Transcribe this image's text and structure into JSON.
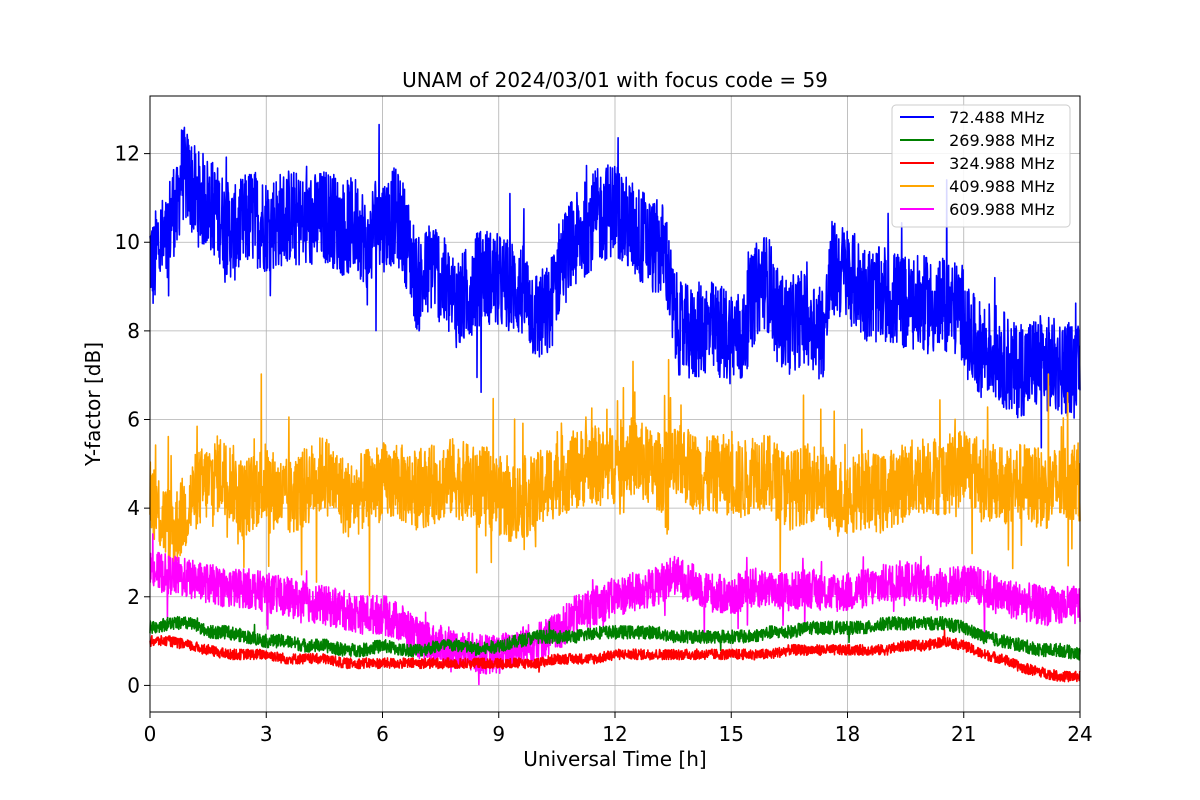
{
  "chart_data": {
    "type": "line",
    "title": "UNAM of 2024/03/01 with focus code = 59",
    "xlabel": "Universal Time [h]",
    "ylabel": "Y-factor [dB]",
    "xlim": [
      0,
      24
    ],
    "ylim": [
      -0.6,
      13.3
    ],
    "xticks": [
      0,
      3,
      6,
      9,
      12,
      15,
      18,
      21,
      24
    ],
    "yticks": [
      0,
      2,
      4,
      6,
      8,
      10,
      12
    ],
    "grid": true,
    "legend_position": "top-right",
    "series": [
      {
        "name": " 72.488 MHz",
        "color": "#0000ff",
        "points": [
          [
            0,
            9.8
          ],
          [
            0.1,
            9.4
          ],
          [
            0.2,
            10.0
          ],
          [
            0.4,
            9.9
          ],
          [
            0.5,
            10.4
          ],
          [
            0.6,
            10.8
          ],
          [
            0.7,
            10.6
          ],
          [
            0.8,
            11.6
          ],
          [
            1.0,
            11.4
          ],
          [
            1.2,
            11.0
          ],
          [
            1.5,
            10.9
          ],
          [
            1.8,
            10.6
          ],
          [
            2.0,
            10.3
          ],
          [
            2.2,
            10.2
          ],
          [
            2.4,
            10.4
          ],
          [
            2.6,
            10.6
          ],
          [
            3.0,
            10.4
          ],
          [
            3.3,
            10.5
          ],
          [
            3.6,
            10.6
          ],
          [
            4.0,
            10.4
          ],
          [
            4.3,
            10.5
          ],
          [
            4.6,
            10.6
          ],
          [
            5.0,
            10.3
          ],
          [
            5.3,
            10.4
          ],
          [
            5.5,
            10.2
          ],
          [
            5.6,
            9.6
          ],
          [
            5.8,
            10.5
          ],
          [
            6.0,
            10.4
          ],
          [
            6.3,
            10.6
          ],
          [
            6.5,
            10.4
          ],
          [
            6.7,
            9.8
          ],
          [
            6.9,
            9.0
          ],
          [
            7.1,
            9.2
          ],
          [
            7.3,
            9.6
          ],
          [
            7.6,
            9.0
          ],
          [
            8.0,
            8.6
          ],
          [
            8.3,
            9.0
          ],
          [
            8.6,
            9.3
          ],
          [
            9.0,
            9.1
          ],
          [
            9.3,
            9.0
          ],
          [
            9.6,
            8.9
          ],
          [
            10.0,
            8.3
          ],
          [
            10.3,
            8.4
          ],
          [
            10.6,
            9.6
          ],
          [
            11.0,
            10.0
          ],
          [
            11.3,
            10.4
          ],
          [
            11.6,
            10.6
          ],
          [
            12.0,
            10.8
          ],
          [
            12.3,
            10.4
          ],
          [
            12.6,
            10.2
          ],
          [
            13.0,
            9.9
          ],
          [
            13.3,
            9.8
          ],
          [
            13.5,
            8.4
          ],
          [
            13.7,
            8.0
          ],
          [
            14.0,
            7.9
          ],
          [
            14.3,
            8.1
          ],
          [
            14.6,
            8.0
          ],
          [
            15.0,
            7.9
          ],
          [
            15.3,
            7.8
          ],
          [
            15.5,
            8.6
          ],
          [
            15.8,
            9.2
          ],
          [
            16.0,
            9.0
          ],
          [
            16.2,
            8.3
          ],
          [
            16.5,
            8.1
          ],
          [
            16.8,
            8.3
          ],
          [
            17.1,
            8.2
          ],
          [
            17.4,
            8.0
          ],
          [
            17.6,
            9.4
          ],
          [
            18.0,
            9.3
          ],
          [
            18.3,
            9.0
          ],
          [
            18.6,
            8.8
          ],
          [
            19.0,
            8.8
          ],
          [
            19.3,
            8.7
          ],
          [
            19.6,
            8.6
          ],
          [
            20.0,
            8.6
          ],
          [
            20.3,
            8.5
          ],
          [
            20.6,
            8.6
          ],
          [
            21.0,
            8.4
          ],
          [
            21.1,
            7.9
          ],
          [
            21.4,
            7.6
          ],
          [
            21.7,
            7.6
          ],
          [
            22.0,
            7.4
          ],
          [
            22.3,
            7.1
          ],
          [
            22.6,
            7.2
          ],
          [
            23.0,
            7.3
          ],
          [
            23.3,
            7.2
          ],
          [
            23.6,
            7.2
          ],
          [
            24.0,
            7.0
          ]
        ]
      },
      {
        "name": " 269.988 MHz",
        "color": "#008000",
        "points": [
          [
            0,
            1.3
          ],
          [
            0.5,
            1.4
          ],
          [
            1.0,
            1.4
          ],
          [
            1.5,
            1.2
          ],
          [
            2.0,
            1.2
          ],
          [
            2.5,
            1.1
          ],
          [
            3.0,
            1.0
          ],
          [
            3.5,
            1.0
          ],
          [
            4.0,
            0.9
          ],
          [
            4.5,
            0.9
          ],
          [
            5.0,
            0.8
          ],
          [
            5.5,
            0.8
          ],
          [
            6.0,
            0.9
          ],
          [
            6.5,
            0.8
          ],
          [
            7.0,
            0.8
          ],
          [
            7.5,
            0.9
          ],
          [
            8.0,
            0.9
          ],
          [
            8.5,
            0.8
          ],
          [
            9.0,
            0.9
          ],
          [
            9.5,
            1.0
          ],
          [
            10.0,
            1.1
          ],
          [
            10.5,
            1.1
          ],
          [
            11.0,
            1.1
          ],
          [
            11.5,
            1.2
          ],
          [
            12.0,
            1.2
          ],
          [
            12.5,
            1.2
          ],
          [
            13.0,
            1.2
          ],
          [
            13.5,
            1.1
          ],
          [
            14.0,
            1.1
          ],
          [
            14.5,
            1.1
          ],
          [
            15.0,
            1.1
          ],
          [
            15.5,
            1.1
          ],
          [
            16.0,
            1.2
          ],
          [
            16.5,
            1.2
          ],
          [
            17.0,
            1.3
          ],
          [
            17.5,
            1.3
          ],
          [
            18.0,
            1.3
          ],
          [
            18.5,
            1.3
          ],
          [
            19.0,
            1.4
          ],
          [
            19.5,
            1.4
          ],
          [
            20.0,
            1.4
          ],
          [
            20.5,
            1.4
          ],
          [
            21.0,
            1.3
          ],
          [
            21.5,
            1.1
          ],
          [
            22.0,
            1.0
          ],
          [
            22.5,
            0.9
          ],
          [
            23.0,
            0.8
          ],
          [
            23.5,
            0.8
          ],
          [
            24.0,
            0.7
          ]
        ]
      },
      {
        "name": " 324.988 MHz",
        "color": "#ff0000",
        "points": [
          [
            0,
            1.0
          ],
          [
            0.5,
            1.0
          ],
          [
            1.0,
            0.9
          ],
          [
            1.5,
            0.8
          ],
          [
            2.0,
            0.7
          ],
          [
            2.5,
            0.7
          ],
          [
            3.0,
            0.7
          ],
          [
            3.5,
            0.6
          ],
          [
            4.0,
            0.6
          ],
          [
            4.5,
            0.6
          ],
          [
            5.0,
            0.5
          ],
          [
            5.5,
            0.5
          ],
          [
            6.0,
            0.5
          ],
          [
            6.5,
            0.5
          ],
          [
            7.0,
            0.5
          ],
          [
            7.5,
            0.5
          ],
          [
            8.0,
            0.5
          ],
          [
            8.5,
            0.5
          ],
          [
            9.0,
            0.5
          ],
          [
            9.5,
            0.5
          ],
          [
            10.0,
            0.5
          ],
          [
            10.5,
            0.6
          ],
          [
            11.0,
            0.6
          ],
          [
            11.5,
            0.6
          ],
          [
            12.0,
            0.7
          ],
          [
            12.5,
            0.7
          ],
          [
            13.0,
            0.7
          ],
          [
            13.5,
            0.7
          ],
          [
            14.0,
            0.7
          ],
          [
            14.5,
            0.7
          ],
          [
            15.0,
            0.7
          ],
          [
            15.5,
            0.7
          ],
          [
            16.0,
            0.7
          ],
          [
            16.5,
            0.8
          ],
          [
            17.0,
            0.8
          ],
          [
            17.5,
            0.8
          ],
          [
            18.0,
            0.8
          ],
          [
            18.5,
            0.8
          ],
          [
            19.0,
            0.8
          ],
          [
            19.5,
            0.9
          ],
          [
            20.0,
            0.9
          ],
          [
            20.5,
            1.0
          ],
          [
            21.0,
            0.9
          ],
          [
            21.5,
            0.7
          ],
          [
            22.0,
            0.6
          ],
          [
            22.5,
            0.4
          ],
          [
            23.0,
            0.3
          ],
          [
            23.5,
            0.2
          ],
          [
            24.0,
            0.2
          ]
        ]
      },
      {
        "name": " 409.988 MHz",
        "color": "#ffa500",
        "points": [
          [
            0,
            4.4
          ],
          [
            0.3,
            3.8
          ],
          [
            0.6,
            3.5
          ],
          [
            0.9,
            3.9
          ],
          [
            1.2,
            4.4
          ],
          [
            1.5,
            4.6
          ],
          [
            1.8,
            4.8
          ],
          [
            2.1,
            4.6
          ],
          [
            2.4,
            4.2
          ],
          [
            2.7,
            4.4
          ],
          [
            3.0,
            4.6
          ],
          [
            3.3,
            4.3
          ],
          [
            3.6,
            4.2
          ],
          [
            3.9,
            4.4
          ],
          [
            4.2,
            4.6
          ],
          [
            4.5,
            4.8
          ],
          [
            4.8,
            4.5
          ],
          [
            5.1,
            4.2
          ],
          [
            5.4,
            4.3
          ],
          [
            5.7,
            4.5
          ],
          [
            6.0,
            4.6
          ],
          [
            6.3,
            4.6
          ],
          [
            6.6,
            4.5
          ],
          [
            6.9,
            4.4
          ],
          [
            7.2,
            4.5
          ],
          [
            7.5,
            4.6
          ],
          [
            7.8,
            4.7
          ],
          [
            8.1,
            4.6
          ],
          [
            8.4,
            4.5
          ],
          [
            8.7,
            4.5
          ],
          [
            9.0,
            4.3
          ],
          [
            9.3,
            4.1
          ],
          [
            9.6,
            4.2
          ],
          [
            9.9,
            4.3
          ],
          [
            10.2,
            4.5
          ],
          [
            10.5,
            4.7
          ],
          [
            10.8,
            4.8
          ],
          [
            11.1,
            4.9
          ],
          [
            11.4,
            5.0
          ],
          [
            11.7,
            4.9
          ],
          [
            12.0,
            5.0
          ],
          [
            12.3,
            5.2
          ],
          [
            12.6,
            5.1
          ],
          [
            12.9,
            4.9
          ],
          [
            13.2,
            4.8
          ],
          [
            13.5,
            4.9
          ],
          [
            13.8,
            5.0
          ],
          [
            14.1,
            4.8
          ],
          [
            14.4,
            4.7
          ],
          [
            14.7,
            4.8
          ],
          [
            15.0,
            4.7
          ],
          [
            15.3,
            4.6
          ],
          [
            15.6,
            4.9
          ],
          [
            15.9,
            4.8
          ],
          [
            16.2,
            4.6
          ],
          [
            16.5,
            4.4
          ],
          [
            16.8,
            4.5
          ],
          [
            17.1,
            4.6
          ],
          [
            17.4,
            4.5
          ],
          [
            17.7,
            4.2
          ],
          [
            18.0,
            4.3
          ],
          [
            18.3,
            4.4
          ],
          [
            18.6,
            4.4
          ],
          [
            18.9,
            4.3
          ],
          [
            19.2,
            4.5
          ],
          [
            19.5,
            4.6
          ],
          [
            19.8,
            4.7
          ],
          [
            20.1,
            4.8
          ],
          [
            20.4,
            4.7
          ],
          [
            20.7,
            4.8
          ],
          [
            21.0,
            5.0
          ],
          [
            21.3,
            4.8
          ],
          [
            21.6,
            4.6
          ],
          [
            21.9,
            4.5
          ],
          [
            22.2,
            4.5
          ],
          [
            22.5,
            4.6
          ],
          [
            22.8,
            4.5
          ],
          [
            23.1,
            4.4
          ],
          [
            23.4,
            4.5
          ],
          [
            23.7,
            4.6
          ],
          [
            24.0,
            4.6
          ]
        ]
      },
      {
        "name": " 609.988 MHz",
        "color": "#ff00ff",
        "points": [
          [
            0,
            2.6
          ],
          [
            0.5,
            2.5
          ],
          [
            1.0,
            2.4
          ],
          [
            1.5,
            2.3
          ],
          [
            2.0,
            2.2
          ],
          [
            2.5,
            2.2
          ],
          [
            3.0,
            2.1
          ],
          [
            3.5,
            2.0
          ],
          [
            4.0,
            1.9
          ],
          [
            4.5,
            1.8
          ],
          [
            5.0,
            1.7
          ],
          [
            5.5,
            1.6
          ],
          [
            6.0,
            1.6
          ],
          [
            6.5,
            1.4
          ],
          [
            7.0,
            1.0
          ],
          [
            7.5,
            0.9
          ],
          [
            8.0,
            0.8
          ],
          [
            8.5,
            0.7
          ],
          [
            9.0,
            0.7
          ],
          [
            9.5,
            0.9
          ],
          [
            10.0,
            1.0
          ],
          [
            10.5,
            1.2
          ],
          [
            11.0,
            1.6
          ],
          [
            11.5,
            1.8
          ],
          [
            12.0,
            2.0
          ],
          [
            12.5,
            2.1
          ],
          [
            13.0,
            2.2
          ],
          [
            13.5,
            2.5
          ],
          [
            14.0,
            2.3
          ],
          [
            14.5,
            2.1
          ],
          [
            15.0,
            2.0
          ],
          [
            15.5,
            2.2
          ],
          [
            16.0,
            2.2
          ],
          [
            16.5,
            2.1
          ],
          [
            17.0,
            2.2
          ],
          [
            17.5,
            2.1
          ],
          [
            18.0,
            2.1
          ],
          [
            18.5,
            2.2
          ],
          [
            19.0,
            2.3
          ],
          [
            19.5,
            2.4
          ],
          [
            20.0,
            2.3
          ],
          [
            20.5,
            2.2
          ],
          [
            21.0,
            2.3
          ],
          [
            21.5,
            2.2
          ],
          [
            22.0,
            2.0
          ],
          [
            22.5,
            1.9
          ],
          [
            23.0,
            1.8
          ],
          [
            23.5,
            1.8
          ],
          [
            24.0,
            1.8
          ]
        ]
      }
    ]
  }
}
